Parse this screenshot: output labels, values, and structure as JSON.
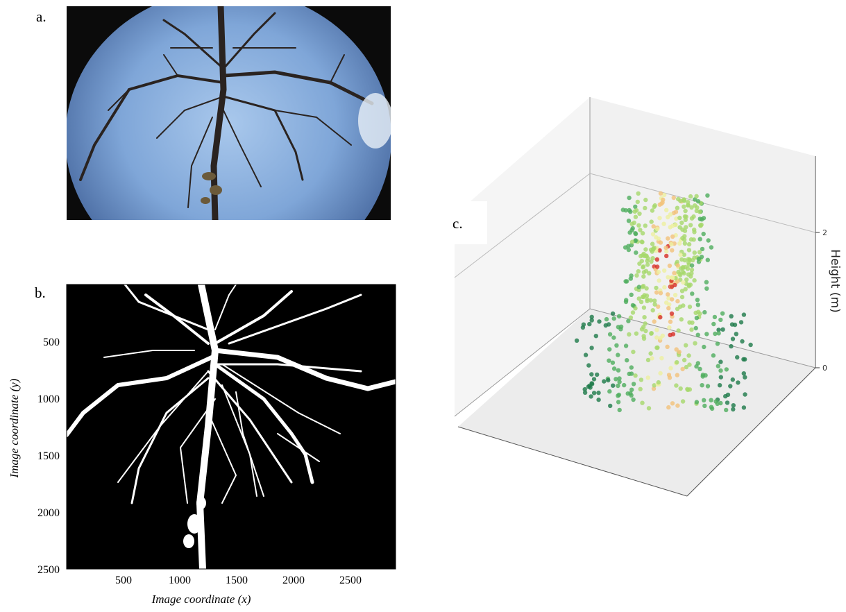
{
  "panels": {
    "a": {
      "label": "a."
    },
    "b": {
      "label": "b."
    },
    "c": {
      "label": "c."
    }
  },
  "chart_data": [
    {
      "type": "heatmap",
      "panel": "b",
      "title": "",
      "xlabel": "Image coordinate (x)",
      "ylabel": "Image coordinate (y)",
      "x_ticks": [
        "500",
        "1000",
        "1500",
        "2000",
        "2500"
      ],
      "y_ticks": [
        "500",
        "1000",
        "1500",
        "2000",
        "2500"
      ],
      "xlim": [
        0,
        2900
      ],
      "ylim": [
        2500,
        0
      ]
    },
    {
      "type": "scatter",
      "panel": "c",
      "title": "",
      "zlabel": "Height (m)",
      "z_ticks": [
        "0",
        "2"
      ],
      "colors": [
        "#1e7a4a",
        "#4fae5e",
        "#a6d86b",
        "#eef0a0",
        "#f2c27a",
        "#d73027"
      ]
    }
  ]
}
